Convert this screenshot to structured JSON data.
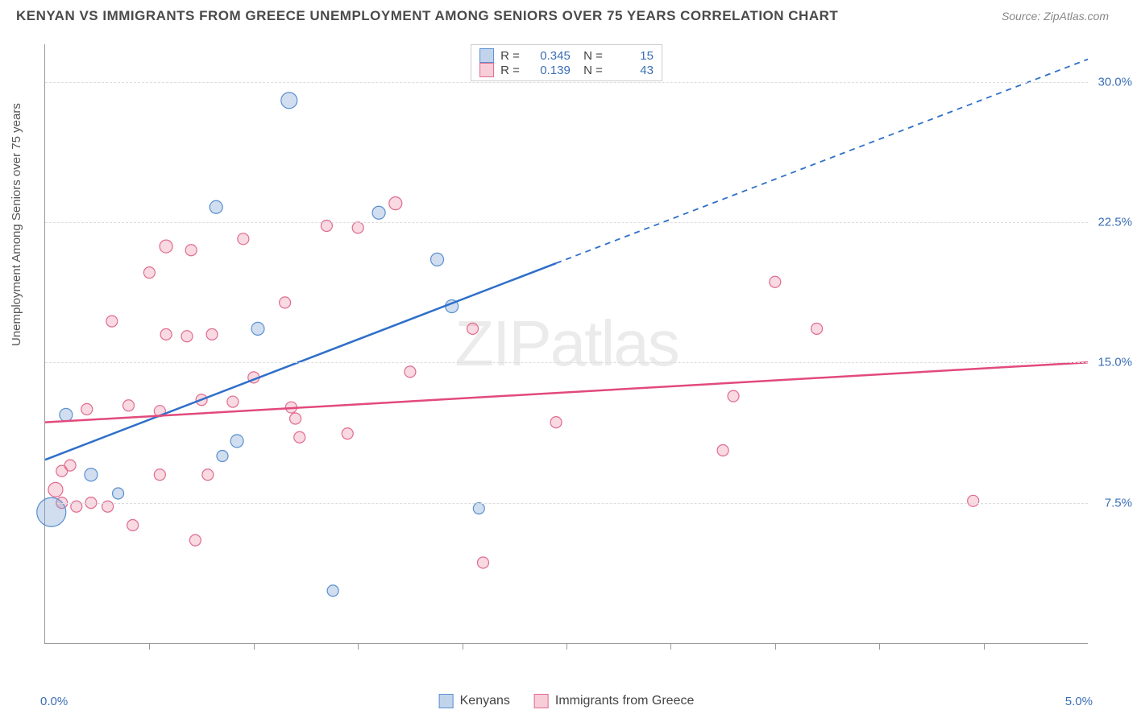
{
  "title": "KENYAN VS IMMIGRANTS FROM GREECE UNEMPLOYMENT AMONG SENIORS OVER 75 YEARS CORRELATION CHART",
  "source": "Source: ZipAtlas.com",
  "ylabel": "Unemployment Among Seniors over 75 years",
  "watermark": "ZIPatlas",
  "chart": {
    "type": "scatter",
    "xlim": [
      0,
      5.0
    ],
    "ylim": [
      0,
      32
    ],
    "x_axis_label_left": "0.0%",
    "x_axis_label_right": "5.0%",
    "y_ticks": [
      7.5,
      15.0,
      22.5,
      30.0
    ],
    "y_tick_labels": [
      "7.5%",
      "15.0%",
      "22.5%",
      "30.0%"
    ],
    "x_tick_positions": [
      0.5,
      1.0,
      1.5,
      2.0,
      2.5,
      3.0,
      3.5,
      4.0,
      4.5
    ],
    "grid_color": "#dddddd",
    "axis_color": "#999999",
    "background_color": "#ffffff",
    "series": [
      {
        "name": "Kenyans",
        "fill": "rgba(120,160,210,0.35)",
        "stroke": "#5a8fd0",
        "line_color": "#2f6fc9",
        "R": "0.345",
        "N": "15",
        "trend": {
          "x1": 0,
          "y1": 9.8,
          "x2": 2.45,
          "y2": 20.3,
          "dash_x2": 5.0,
          "dash_y2": 31.2
        },
        "points": [
          {
            "x": 0.03,
            "y": 7.0,
            "r": 18
          },
          {
            "x": 0.1,
            "y": 12.2,
            "r": 8
          },
          {
            "x": 0.22,
            "y": 9.0,
            "r": 8
          },
          {
            "x": 0.35,
            "y": 8.0,
            "r": 7
          },
          {
            "x": 0.82,
            "y": 23.3,
            "r": 8
          },
          {
            "x": 0.85,
            "y": 10.0,
            "r": 7
          },
          {
            "x": 0.92,
            "y": 10.8,
            "r": 8
          },
          {
            "x": 1.02,
            "y": 16.8,
            "r": 8
          },
          {
            "x": 1.17,
            "y": 29.0,
            "r": 10
          },
          {
            "x": 1.38,
            "y": 2.8,
            "r": 7
          },
          {
            "x": 1.6,
            "y": 23.0,
            "r": 8
          },
          {
            "x": 1.88,
            "y": 20.5,
            "r": 8
          },
          {
            "x": 1.95,
            "y": 18.0,
            "r": 8
          },
          {
            "x": 2.08,
            "y": 7.2,
            "r": 7
          }
        ]
      },
      {
        "name": "Immigrants from Greece",
        "fill": "rgba(235,130,160,0.30)",
        "stroke": "#e06b8f",
        "line_color": "#e24a7b",
        "R": "0.139",
        "N": "43",
        "trend": {
          "x1": 0,
          "y1": 11.8,
          "x2": 5.0,
          "y2": 15.0
        },
        "points": [
          {
            "x": 0.05,
            "y": 8.2,
            "r": 9
          },
          {
            "x": 0.08,
            "y": 9.2,
            "r": 7
          },
          {
            "x": 0.08,
            "y": 7.5,
            "r": 7
          },
          {
            "x": 0.12,
            "y": 9.5,
            "r": 7
          },
          {
            "x": 0.15,
            "y": 7.3,
            "r": 7
          },
          {
            "x": 0.2,
            "y": 12.5,
            "r": 7
          },
          {
            "x": 0.22,
            "y": 7.5,
            "r": 7
          },
          {
            "x": 0.3,
            "y": 7.3,
            "r": 7
          },
          {
            "x": 0.32,
            "y": 17.2,
            "r": 7
          },
          {
            "x": 0.4,
            "y": 12.7,
            "r": 7
          },
          {
            "x": 0.42,
            "y": 6.3,
            "r": 7
          },
          {
            "x": 0.5,
            "y": 19.8,
            "r": 7
          },
          {
            "x": 0.55,
            "y": 9.0,
            "r": 7
          },
          {
            "x": 0.55,
            "y": 12.4,
            "r": 7
          },
          {
            "x": 0.58,
            "y": 21.2,
            "r": 8
          },
          {
            "x": 0.58,
            "y": 16.5,
            "r": 7
          },
          {
            "x": 0.68,
            "y": 16.4,
            "r": 7
          },
          {
            "x": 0.7,
            "y": 21.0,
            "r": 7
          },
          {
            "x": 0.72,
            "y": 5.5,
            "r": 7
          },
          {
            "x": 0.75,
            "y": 13.0,
            "r": 7
          },
          {
            "x": 0.78,
            "y": 9.0,
            "r": 7
          },
          {
            "x": 0.8,
            "y": 16.5,
            "r": 7
          },
          {
            "x": 0.9,
            "y": 12.9,
            "r": 7
          },
          {
            "x": 0.95,
            "y": 21.6,
            "r": 7
          },
          {
            "x": 1.0,
            "y": 14.2,
            "r": 7
          },
          {
            "x": 1.15,
            "y": 18.2,
            "r": 7
          },
          {
            "x": 1.18,
            "y": 12.6,
            "r": 7
          },
          {
            "x": 1.2,
            "y": 12.0,
            "r": 7
          },
          {
            "x": 1.22,
            "y": 11.0,
            "r": 7
          },
          {
            "x": 1.35,
            "y": 22.3,
            "r": 7
          },
          {
            "x": 1.45,
            "y": 11.2,
            "r": 7
          },
          {
            "x": 1.5,
            "y": 22.2,
            "r": 7
          },
          {
            "x": 1.68,
            "y": 23.5,
            "r": 8
          },
          {
            "x": 1.75,
            "y": 14.5,
            "r": 7
          },
          {
            "x": 2.05,
            "y": 16.8,
            "r": 7
          },
          {
            "x": 2.1,
            "y": 4.3,
            "r": 7
          },
          {
            "x": 2.45,
            "y": 11.8,
            "r": 7
          },
          {
            "x": 3.25,
            "y": 10.3,
            "r": 7
          },
          {
            "x": 3.3,
            "y": 13.2,
            "r": 7
          },
          {
            "x": 3.5,
            "y": 19.3,
            "r": 7
          },
          {
            "x": 3.7,
            "y": 16.8,
            "r": 7
          },
          {
            "x": 4.45,
            "y": 7.6,
            "r": 7
          }
        ]
      }
    ]
  },
  "legend_bottom": [
    {
      "label": "Kenyans",
      "fill": "rgba(120,160,210,0.45)",
      "stroke": "#5a8fd0"
    },
    {
      "label": "Immigrants from Greece",
      "fill": "rgba(235,130,160,0.40)",
      "stroke": "#e06b8f"
    }
  ]
}
